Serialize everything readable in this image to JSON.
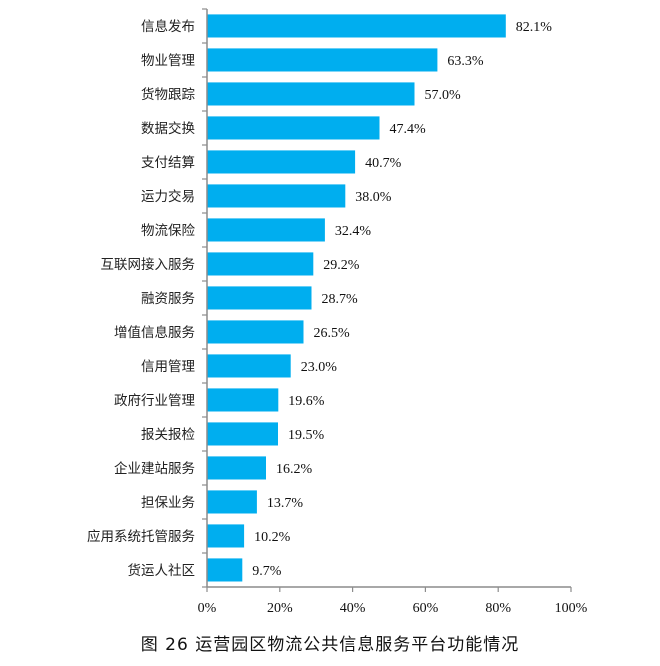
{
  "chart_data": {
    "type": "bar",
    "orientation": "horizontal",
    "title": "图 26 运营园区物流公共信息服务平台功能情况",
    "xlabel": "",
    "ylabel": "",
    "categories": [
      "信息发布",
      "物业管理",
      "货物跟踪",
      "数据交换",
      "支付结算",
      "运力交易",
      "物流保险",
      "互联网接入服务",
      "融资服务",
      "增值信息服务",
      "信用管理",
      "政府行业管理",
      "报关报检",
      "企业建站服务",
      "担保业务",
      "应用系统托管服务",
      "货运人社区"
    ],
    "values": [
      82.1,
      63.3,
      57.0,
      47.4,
      40.7,
      38.0,
      32.4,
      29.2,
      28.7,
      26.5,
      23.0,
      19.6,
      19.5,
      16.2,
      13.7,
      10.2,
      9.7
    ],
    "value_labels": [
      "82.1%",
      "63.3%",
      "57.0%",
      "47.4%",
      "40.7%",
      "38.0%",
      "32.4%",
      "29.2%",
      "28.7%",
      "26.5%",
      "23.0%",
      "19.6%",
      "19.5%",
      "16.2%",
      "13.7%",
      "10.2%",
      "9.7%"
    ],
    "xlim": [
      0,
      100
    ],
    "xticks": [
      "0%",
      "20%",
      "40%",
      "60%",
      "80%",
      "100%"
    ],
    "grid": false,
    "legend": null,
    "bar_color": "#00AEEF"
  },
  "caption": "图 26  运营园区物流公共信息服务平台功能情况"
}
